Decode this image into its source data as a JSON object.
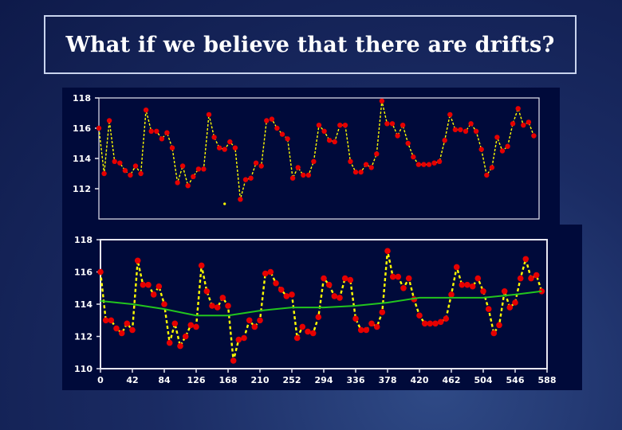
{
  "title": "What if we believe that there are drifts?",
  "colors": {
    "background": "#1a2b63",
    "plot_bg": "#000a3a",
    "frame": "#e6e6f0",
    "data_line": "#ffff00",
    "data_marker": "#e60000",
    "trend_line": "#22c51e",
    "tick_text": "#ffffff"
  },
  "chart_data": [
    {
      "type": "line",
      "title": "",
      "xlabel": "",
      "ylabel": "",
      "xlim": [
        0,
        588
      ],
      "ylim": [
        110,
        118
      ],
      "yticks": [
        112,
        114,
        116,
        118
      ],
      "grid": false,
      "series": [
        {
          "values": [
            [
              0,
              116.0
            ],
            [
              7,
              113.0
            ],
            [
              14,
              116.5
            ],
            [
              21,
              113.8
            ],
            [
              28,
              113.7
            ],
            [
              35,
              113.2
            ],
            [
              42,
              112.9
            ],
            [
              49,
              113.5
            ],
            [
              56,
              113.0
            ],
            [
              63,
              117.2
            ],
            [
              70,
              115.8
            ],
            [
              77,
              115.8
            ],
            [
              84,
              115.3
            ],
            [
              91,
              115.7
            ],
            [
              98,
              114.7
            ],
            [
              105,
              112.4
            ],
            [
              112,
              113.5
            ],
            [
              119,
              112.2
            ],
            [
              126,
              112.8
            ],
            [
              133,
              113.3
            ],
            [
              140,
              113.3
            ],
            [
              147,
              116.9
            ],
            [
              154,
              115.4
            ],
            [
              161,
              114.7
            ],
            [
              168,
              114.6
            ],
            [
              175,
              115.1
            ],
            [
              182,
              114.7
            ],
            [
              189,
              111.3
            ],
            [
              196,
              112.6
            ],
            [
              203,
              112.7
            ],
            [
              210,
              113.7
            ],
            [
              217,
              113.5
            ],
            [
              224,
              116.5
            ],
            [
              231,
              116.6
            ],
            [
              238,
              116.0
            ],
            [
              245,
              115.6
            ],
            [
              252,
              115.3
            ],
            [
              259,
              112.7
            ],
            [
              266,
              113.4
            ],
            [
              273,
              112.9
            ],
            [
              280,
              112.9
            ],
            [
              287,
              113.8
            ],
            [
              294,
              116.2
            ],
            [
              301,
              115.8
            ],
            [
              308,
              115.2
            ],
            [
              315,
              115.1
            ],
            [
              322,
              116.2
            ],
            [
              329,
              116.2
            ],
            [
              336,
              113.8
            ],
            [
              343,
              113.1
            ],
            [
              350,
              113.1
            ],
            [
              357,
              113.6
            ],
            [
              364,
              113.4
            ],
            [
              371,
              114.3
            ],
            [
              378,
              117.8
            ],
            [
              385,
              116.3
            ],
            [
              392,
              116.3
            ],
            [
              399,
              115.5
            ],
            [
              406,
              116.2
            ],
            [
              413,
              115.0
            ],
            [
              420,
              114.1
            ],
            [
              427,
              113.6
            ],
            [
              434,
              113.6
            ],
            [
              441,
              113.6
            ],
            [
              448,
              113.7
            ],
            [
              455,
              113.8
            ],
            [
              462,
              115.2
            ],
            [
              469,
              116.9
            ],
            [
              476,
              115.9
            ],
            [
              483,
              115.9
            ],
            [
              490,
              115.8
            ],
            [
              497,
              116.3
            ],
            [
              504,
              115.8
            ],
            [
              511,
              114.6
            ],
            [
              518,
              112.9
            ],
            [
              525,
              113.4
            ],
            [
              532,
              115.4
            ],
            [
              539,
              114.5
            ],
            [
              546,
              114.8
            ],
            [
              553,
              116.3
            ],
            [
              560,
              117.3
            ],
            [
              567,
              116.2
            ],
            [
              574,
              116.4
            ],
            [
              581,
              115.5
            ]
          ],
          "extra_points": [
            [
              168,
              111.0
            ]
          ]
        }
      ]
    },
    {
      "type": "line",
      "title": "",
      "xlabel": "",
      "ylabel": "",
      "xlim": [
        0,
        588
      ],
      "ylim": [
        110,
        118
      ],
      "xticks": [
        0,
        42,
        84,
        126,
        168,
        210,
        252,
        294,
        336,
        378,
        420,
        462,
        504,
        546,
        588
      ],
      "yticks": [
        110,
        112,
        114,
        116,
        118
      ],
      "grid": false,
      "series": [
        {
          "values": [
            [
              0,
              116.0
            ],
            [
              7,
              113.0
            ],
            [
              14,
              113.0
            ],
            [
              21,
              112.5
            ],
            [
              28,
              112.2
            ],
            [
              35,
              112.8
            ],
            [
              42,
              112.4
            ],
            [
              49,
              116.7
            ],
            [
              56,
              115.2
            ],
            [
              63,
              115.2
            ],
            [
              70,
              114.6
            ],
            [
              77,
              115.1
            ],
            [
              84,
              114.0
            ],
            [
              91,
              111.6
            ],
            [
              98,
              112.8
            ],
            [
              105,
              111.4
            ],
            [
              112,
              112.0
            ],
            [
              119,
              112.7
            ],
            [
              126,
              112.6
            ],
            [
              133,
              116.4
            ],
            [
              140,
              114.8
            ],
            [
              147,
              113.9
            ],
            [
              154,
              113.8
            ],
            [
              161,
              114.4
            ],
            [
              168,
              113.9
            ],
            [
              175,
              110.5
            ],
            [
              182,
              111.8
            ],
            [
              189,
              111.9
            ],
            [
              196,
              113.0
            ],
            [
              203,
              112.6
            ],
            [
              210,
              113.0
            ],
            [
              217,
              115.9
            ],
            [
              224,
              116.0
            ],
            [
              231,
              115.3
            ],
            [
              238,
              114.9
            ],
            [
              245,
              114.5
            ],
            [
              252,
              114.6
            ],
            [
              259,
              111.9
            ],
            [
              266,
              112.6
            ],
            [
              273,
              112.3
            ],
            [
              280,
              112.2
            ],
            [
              287,
              113.2
            ],
            [
              294,
              115.6
            ],
            [
              301,
              115.2
            ],
            [
              308,
              114.5
            ],
            [
              315,
              114.4
            ],
            [
              322,
              115.6
            ],
            [
              329,
              115.5
            ],
            [
              336,
              113.1
            ],
            [
              343,
              112.4
            ],
            [
              350,
              112.4
            ],
            [
              357,
              112.8
            ],
            [
              364,
              112.6
            ],
            [
              371,
              113.5
            ],
            [
              378,
              117.3
            ],
            [
              385,
              115.7
            ],
            [
              392,
              115.7
            ],
            [
              399,
              115.0
            ],
            [
              406,
              115.6
            ],
            [
              413,
              114.3
            ],
            [
              420,
              113.3
            ],
            [
              427,
              112.8
            ],
            [
              434,
              112.8
            ],
            [
              441,
              112.8
            ],
            [
              448,
              112.9
            ],
            [
              455,
              113.1
            ],
            [
              462,
              114.6
            ],
            [
              469,
              116.3
            ],
            [
              476,
              115.2
            ],
            [
              483,
              115.2
            ],
            [
              490,
              115.1
            ],
            [
              497,
              115.6
            ],
            [
              504,
              114.8
            ],
            [
              511,
              113.7
            ],
            [
              518,
              112.2
            ],
            [
              525,
              112.7
            ],
            [
              532,
              114.8
            ],
            [
              539,
              113.8
            ],
            [
              546,
              114.1
            ],
            [
              553,
              115.6
            ],
            [
              560,
              116.8
            ],
            [
              567,
              115.6
            ],
            [
              574,
              115.8
            ],
            [
              581,
              114.8
            ]
          ]
        },
        {
          "values": [
            [
              0,
              114.2
            ],
            [
              42,
              114.0
            ],
            [
              84,
              113.7
            ],
            [
              126,
              113.3
            ],
            [
              168,
              113.3
            ],
            [
              210,
              113.6
            ],
            [
              252,
              113.8
            ],
            [
              294,
              113.8
            ],
            [
              336,
              113.9
            ],
            [
              378,
              114.1
            ],
            [
              420,
              114.4
            ],
            [
              462,
              114.4
            ],
            [
              504,
              114.4
            ],
            [
              546,
              114.6
            ],
            [
              581,
              114.8
            ]
          ]
        }
      ]
    }
  ]
}
